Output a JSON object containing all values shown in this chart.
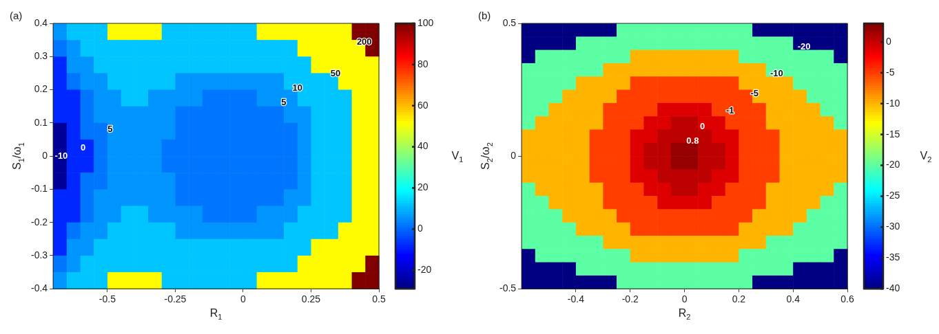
{
  "chart_data": [
    {
      "type": "heatmap",
      "title": "(a)",
      "xlabel": "R$_{1}$",
      "ylabel": "S$_{1}$/ω$_{1}$",
      "clabel": "V$_{1}$",
      "xlim": [
        -0.7,
        0.5
      ],
      "xticks": [
        -0.5,
        -0.25,
        0,
        0.25,
        0.5
      ],
      "ylim": [
        -0.4,
        0.4
      ],
      "yticks": [
        -0.4,
        -0.3,
        -0.2,
        -0.1,
        0,
        0.1,
        0.2,
        0.3,
        0.4
      ],
      "clim": [
        -29,
        100
      ],
      "cticks": [
        -20,
        0,
        20,
        40,
        60,
        80,
        100
      ],
      "x": [
        -0.675,
        -0.625,
        -0.575,
        -0.525,
        -0.475,
        -0.425,
        -0.375,
        -0.325,
        -0.275,
        -0.225,
        -0.175,
        -0.125,
        -0.075,
        -0.025,
        0.025,
        0.075,
        0.125,
        0.175,
        0.225,
        0.275,
        0.325,
        0.375,
        0.425,
        0.475
      ],
      "y": [
        0.375,
        0.325,
        0.275,
        0.225,
        0.175,
        0.125,
        0.075,
        0.025,
        -0.025,
        -0.075,
        -0.125,
        -0.175,
        -0.225,
        -0.275,
        -0.325,
        -0.375
      ],
      "cells": [
        [
          6,
          12,
          12,
          12,
          52,
          52,
          52,
          52,
          12,
          12,
          12,
          12,
          12,
          12,
          12,
          52,
          52,
          52,
          52,
          52,
          52,
          52,
          100,
          100
        ],
        [
          2,
          6,
          12,
          12,
          12,
          12,
          12,
          12,
          12,
          12,
          12,
          12,
          12,
          12,
          12,
          12,
          12,
          12,
          52,
          52,
          52,
          52,
          52,
          100
        ],
        [
          -8,
          6,
          6,
          12,
          12,
          12,
          12,
          12,
          12,
          12,
          12,
          12,
          12,
          12,
          12,
          12,
          12,
          12,
          12,
          52,
          52,
          52,
          52,
          52
        ],
        [
          -8,
          2,
          6,
          6,
          12,
          12,
          12,
          12,
          12,
          6,
          6,
          6,
          6,
          6,
          6,
          6,
          6,
          12,
          12,
          12,
          12,
          52,
          52,
          52
        ],
        [
          -8,
          -8,
          2,
          6,
          6,
          12,
          12,
          6,
          6,
          6,
          6,
          2,
          2,
          2,
          2,
          6,
          6,
          6,
          12,
          12,
          12,
          12,
          52,
          52
        ],
        [
          -8,
          -8,
          2,
          6,
          6,
          6,
          6,
          6,
          6,
          2,
          2,
          2,
          2,
          2,
          2,
          2,
          2,
          6,
          6,
          12,
          12,
          12,
          52,
          52
        ],
        [
          -26,
          -8,
          2,
          2,
          6,
          6,
          6,
          6,
          6,
          2,
          2,
          2,
          2,
          2,
          2,
          2,
          2,
          2,
          6,
          12,
          12,
          12,
          52,
          52
        ],
        [
          -26,
          -8,
          -8,
          2,
          6,
          6,
          6,
          6,
          2,
          2,
          2,
          2,
          2,
          2,
          2,
          2,
          2,
          2,
          6,
          12,
          12,
          12,
          52,
          52
        ],
        [
          -26,
          -8,
          -8,
          2,
          6,
          6,
          6,
          6,
          2,
          2,
          2,
          2,
          2,
          2,
          2,
          2,
          2,
          2,
          6,
          12,
          12,
          12,
          52,
          52
        ],
        [
          -26,
          -8,
          2,
          2,
          6,
          6,
          6,
          6,
          6,
          2,
          2,
          2,
          2,
          2,
          2,
          2,
          2,
          2,
          6,
          12,
          12,
          12,
          52,
          52
        ],
        [
          -8,
          -8,
          2,
          6,
          6,
          6,
          6,
          6,
          6,
          2,
          2,
          2,
          2,
          2,
          2,
          2,
          2,
          6,
          6,
          12,
          12,
          12,
          52,
          52
        ],
        [
          -8,
          -8,
          2,
          6,
          6,
          12,
          12,
          6,
          6,
          6,
          6,
          2,
          2,
          2,
          2,
          6,
          6,
          6,
          12,
          12,
          12,
          12,
          52,
          52
        ],
        [
          -8,
          2,
          6,
          6,
          12,
          12,
          12,
          12,
          12,
          6,
          6,
          6,
          6,
          6,
          6,
          6,
          6,
          12,
          12,
          12,
          12,
          52,
          52,
          52
        ],
        [
          -8,
          6,
          6,
          12,
          12,
          12,
          12,
          12,
          12,
          12,
          12,
          12,
          12,
          12,
          12,
          12,
          12,
          12,
          12,
          52,
          52,
          52,
          52,
          52
        ],
        [
          2,
          6,
          12,
          12,
          12,
          12,
          12,
          12,
          12,
          12,
          12,
          12,
          12,
          12,
          12,
          12,
          12,
          12,
          52,
          52,
          52,
          52,
          52,
          100
        ],
        [
          6,
          12,
          12,
          12,
          52,
          52,
          52,
          52,
          12,
          12,
          12,
          12,
          12,
          12,
          12,
          52,
          52,
          52,
          52,
          52,
          52,
          52,
          100,
          100
        ]
      ],
      "annotations": [
        "-10",
        "0",
        "5",
        "5",
        "10",
        "50",
        "200"
      ]
    },
    {
      "type": "heatmap",
      "title": "(b)",
      "xlabel": "R$_{2}$",
      "ylabel": "S$_{2}$/ω$_{2}$",
      "clabel": "V$_{2}$",
      "xlim": [
        -0.6,
        0.6
      ],
      "xticks": [
        -0.4,
        -0.2,
        0,
        0.2,
        0.4,
        0.6
      ],
      "ylim": [
        -0.5,
        0.5
      ],
      "yticks": [
        -0.5,
        0,
        0.5
      ],
      "clim": [
        -40,
        3
      ],
      "cticks": [
        -40,
        -35,
        -30,
        -25,
        -20,
        -15,
        -10,
        -5,
        0
      ],
      "x": [
        -0.575,
        -0.525,
        -0.475,
        -0.425,
        -0.375,
        -0.325,
        -0.275,
        -0.225,
        -0.175,
        -0.125,
        -0.075,
        -0.025,
        0.025,
        0.075,
        0.125,
        0.175,
        0.225,
        0.275,
        0.325,
        0.375,
        0.425,
        0.475,
        0.525,
        0.575
      ],
      "y": [
        0.475,
        0.425,
        0.375,
        0.325,
        0.275,
        0.225,
        0.175,
        0.125,
        0.075,
        0.025,
        -0.025,
        -0.075,
        -0.125,
        -0.175,
        -0.225,
        -0.275,
        -0.325,
        -0.375,
        -0.425,
        -0.475
      ],
      "cells": [
        [
          -40,
          -40,
          -40,
          -40,
          -40,
          -40,
          -40,
          -20,
          -20,
          -20,
          -20,
          -20,
          -20,
          -20,
          -20,
          -20,
          -20,
          -40,
          -40,
          -40,
          -40,
          -40,
          -40,
          -40
        ],
        [
          -40,
          -40,
          -40,
          -40,
          -20,
          -20,
          -20,
          -20,
          -20,
          -20,
          -20,
          -20,
          -20,
          -20,
          -20,
          -20,
          -20,
          -20,
          -20,
          -20,
          -40,
          -40,
          -40,
          -40
        ],
        [
          -40,
          -20,
          -20,
          -20,
          -20,
          -20,
          -20,
          -20,
          -10,
          -10,
          -10,
          -10,
          -10,
          -10,
          -10,
          -10,
          -20,
          -20,
          -20,
          -20,
          -20,
          -20,
          -20,
          -40
        ],
        [
          -20,
          -20,
          -20,
          -20,
          -20,
          -20,
          -10,
          -10,
          -10,
          -10,
          -10,
          -10,
          -10,
          -10,
          -10,
          -10,
          -10,
          -10,
          -20,
          -20,
          -20,
          -20,
          -20,
          -20
        ],
        [
          -20,
          -20,
          -20,
          -20,
          -10,
          -10,
          -10,
          -10,
          -5,
          -5,
          -5,
          -5,
          -5,
          -5,
          -5,
          -5,
          -10,
          -10,
          -10,
          -10,
          -20,
          -20,
          -20,
          -20
        ],
        [
          -20,
          -20,
          -20,
          -10,
          -10,
          -10,
          -10,
          -5,
          -5,
          -5,
          -5,
          -5,
          -5,
          -5,
          -5,
          -5,
          -5,
          -10,
          -10,
          -10,
          -10,
          -20,
          -20,
          -20
        ],
        [
          -20,
          -20,
          -10,
          -10,
          -10,
          -10,
          -5,
          -5,
          -5,
          -5,
          -1,
          -1,
          -1,
          -1,
          -5,
          -5,
          -5,
          -5,
          -10,
          -10,
          -10,
          -10,
          -20,
          -20
        ],
        [
          -20,
          -10,
          -10,
          -10,
          -10,
          -10,
          -5,
          -5,
          -5,
          -1,
          -1,
          0.4,
          0.4,
          -1,
          -1,
          -5,
          -5,
          -5,
          -10,
          -10,
          -10,
          -10,
          -10,
          -20
        ],
        [
          -10,
          -10,
          -10,
          -10,
          -10,
          -5,
          -5,
          -5,
          -1,
          -1,
          0.4,
          0.4,
          0.4,
          0.4,
          -1,
          -1,
          -5,
          -5,
          -5,
          -10,
          -10,
          -10,
          -10,
          -10
        ],
        [
          -10,
          -10,
          -10,
          -10,
          -10,
          -5,
          -5,
          -5,
          -1,
          0.4,
          0.4,
          2,
          2,
          0.4,
          0.4,
          -1,
          -5,
          -5,
          -5,
          -10,
          -10,
          -10,
          -10,
          -10
        ],
        [
          -10,
          -10,
          -10,
          -10,
          -10,
          -5,
          -5,
          -5,
          -1,
          0.4,
          0.4,
          2,
          2,
          0.4,
          0.4,
          -1,
          -5,
          -5,
          -5,
          -10,
          -10,
          -10,
          -10,
          -10
        ],
        [
          -10,
          -10,
          -10,
          -10,
          -10,
          -5,
          -5,
          -5,
          -1,
          -1,
          0.4,
          0.4,
          0.4,
          0.4,
          -1,
          -1,
          -5,
          -5,
          -5,
          -10,
          -10,
          -10,
          -10,
          -10
        ],
        [
          -20,
          -10,
          -10,
          -10,
          -10,
          -10,
          -5,
          -5,
          -5,
          -1,
          -1,
          0.4,
          0.4,
          -1,
          -1,
          -5,
          -5,
          -5,
          -10,
          -10,
          -10,
          -10,
          -10,
          -20
        ],
        [
          -20,
          -20,
          -10,
          -10,
          -10,
          -10,
          -5,
          -5,
          -5,
          -5,
          -1,
          -1,
          -1,
          -1,
          -5,
          -5,
          -5,
          -5,
          -10,
          -10,
          -10,
          -10,
          -20,
          -20
        ],
        [
          -20,
          -20,
          -20,
          -10,
          -10,
          -10,
          -10,
          -5,
          -5,
          -5,
          -5,
          -5,
          -5,
          -5,
          -5,
          -5,
          -5,
          -10,
          -10,
          -10,
          -10,
          -20,
          -20,
          -20
        ],
        [
          -20,
          -20,
          -20,
          -20,
          -10,
          -10,
          -10,
          -10,
          -5,
          -5,
          -5,
          -5,
          -5,
          -5,
          -5,
          -5,
          -10,
          -10,
          -10,
          -10,
          -20,
          -20,
          -20,
          -20
        ],
        [
          -20,
          -20,
          -20,
          -20,
          -20,
          -20,
          -10,
          -10,
          -10,
          -10,
          -10,
          -10,
          -10,
          -10,
          -10,
          -10,
          -10,
          -10,
          -20,
          -20,
          -20,
          -20,
          -20,
          -20
        ],
        [
          -40,
          -20,
          -20,
          -20,
          -20,
          -20,
          -20,
          -20,
          -10,
          -10,
          -10,
          -10,
          -10,
          -10,
          -10,
          -10,
          -20,
          -20,
          -20,
          -20,
          -20,
          -20,
          -20,
          -40
        ],
        [
          -40,
          -40,
          -40,
          -40,
          -20,
          -20,
          -20,
          -20,
          -20,
          -20,
          -20,
          -20,
          -20,
          -20,
          -20,
          -20,
          -20,
          -20,
          -20,
          -20,
          -40,
          -40,
          -40,
          -40
        ],
        [
          -40,
          -40,
          -40,
          -40,
          -40,
          -40,
          -40,
          -20,
          -20,
          -20,
          -20,
          -20,
          -20,
          -20,
          -20,
          -20,
          -20,
          -40,
          -40,
          -40,
          -40,
          -40,
          -40,
          -40
        ]
      ],
      "annotations": [
        "-20",
        "-10",
        "-5",
        "-1",
        "0",
        "0.8"
      ]
    }
  ]
}
